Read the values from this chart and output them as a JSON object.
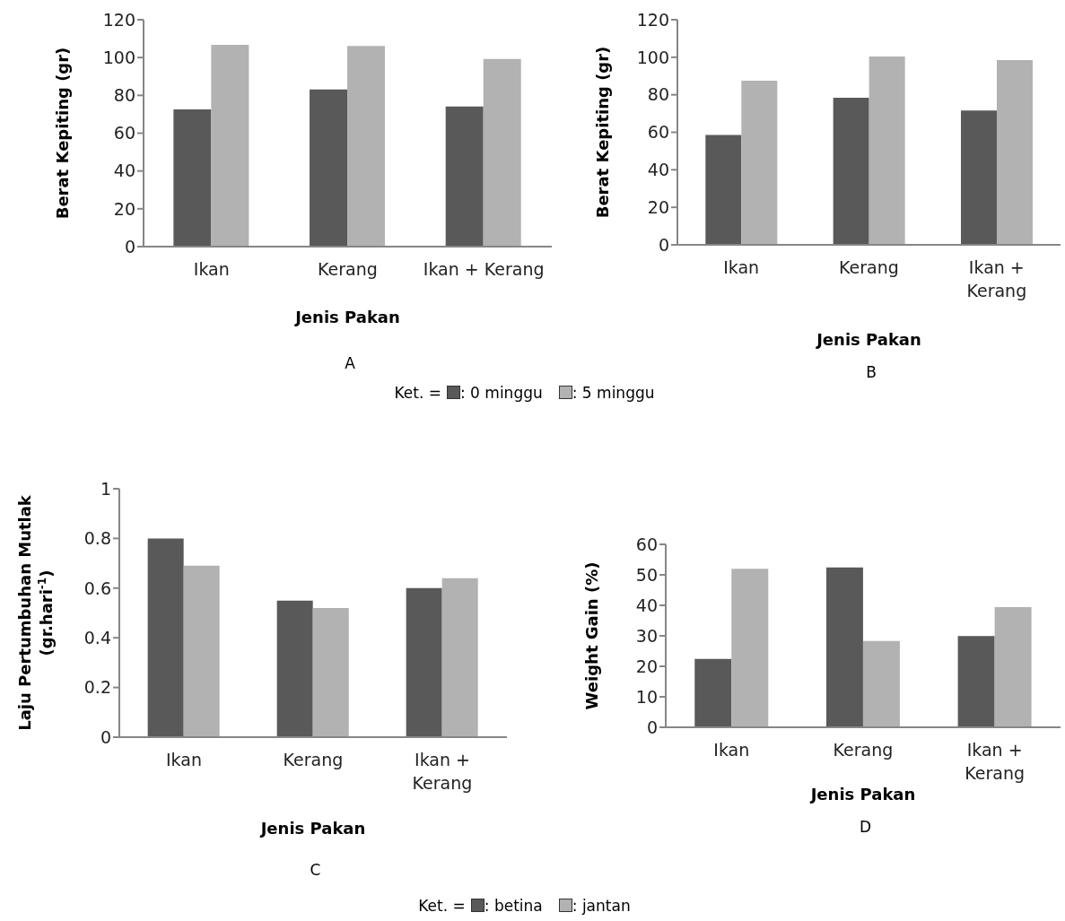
{
  "chart_data": [
    {
      "type": "bar",
      "categories": [
        "Ikan",
        "Kerang",
        "Ikan + Kerang"
      ],
      "xlabel": "Jenis Pakan",
      "ylabel": "Berat Kepiting (gr)",
      "ylim": [
        0,
        120
      ],
      "yticks": [
        0,
        20,
        40,
        60,
        80,
        100,
        120
      ],
      "legend": "bottom",
      "legend_title": "Ket. =",
      "annotations": [
        "A"
      ],
      "series": [
        {
          "name": ": 0 minggu",
          "color": "#595959",
          "values": [
            72.6,
            83.1,
            74.1
          ]
        },
        {
          "name": ": 5 minggu",
          "color": "#b2b2b2",
          "values": [
            106.7,
            106.1,
            99.3
          ]
        }
      ]
    },
    {
      "type": "bar",
      "categories": [
        "Ikan",
        "Kerang",
        "Ikan + Kerang"
      ],
      "xlabel": "Jenis Pakan",
      "ylabel": "Berat Kepiting (gr)",
      "ylim": [
        0,
        120
      ],
      "yticks": [
        0,
        20,
        40,
        60,
        80,
        100,
        120
      ],
      "annotations": [
        "B"
      ],
      "series": [
        {
          "color": "#595959",
          "values": [
            58.6,
            78.4,
            71.6
          ]
        },
        {
          "color": "#b2b2b2",
          "values": [
            87.5,
            100.4,
            98.5
          ]
        }
      ]
    },
    {
      "type": "bar",
      "categories": [
        "Ikan",
        "Kerang",
        "Ikan + Kerang"
      ],
      "xlabel": "Jenis Pakan",
      "ylabel": "Laju Pertumbuhan Mutlak (gr.hari$^{-1}$)",
      "ylim": [
        0,
        1
      ],
      "yticks": [
        0,
        0.2,
        0.4,
        0.6,
        0.8,
        1
      ],
      "legend": "bottom",
      "legend_title": "Ket. =",
      "annotations": [
        "C"
      ],
      "series": [
        {
          "name": ": betina",
          "color": "#595959",
          "values": [
            0.8,
            0.55,
            0.6
          ]
        },
        {
          "name": ": jantan",
          "color": "#b2b2b2",
          "values": [
            0.69,
            0.52,
            0.64
          ]
        }
      ]
    },
    {
      "type": "bar",
      "categories": [
        "Ikan",
        "Kerang",
        "Ikan + Kerang"
      ],
      "xlabel": "Jenis Pakan",
      "ylabel": "Weight Gain (%)",
      "ylim": [
        0,
        60
      ],
      "yticks": [
        0,
        10,
        20,
        30,
        40,
        50,
        60
      ],
      "annotations": [
        "D"
      ],
      "series": [
        {
          "color": "#595959",
          "values": [
            22.4,
            52.4,
            29.9
          ]
        },
        {
          "color": "#b2b2b2",
          "values": [
            52.0,
            28.3,
            39.4
          ]
        }
      ]
    }
  ]
}
